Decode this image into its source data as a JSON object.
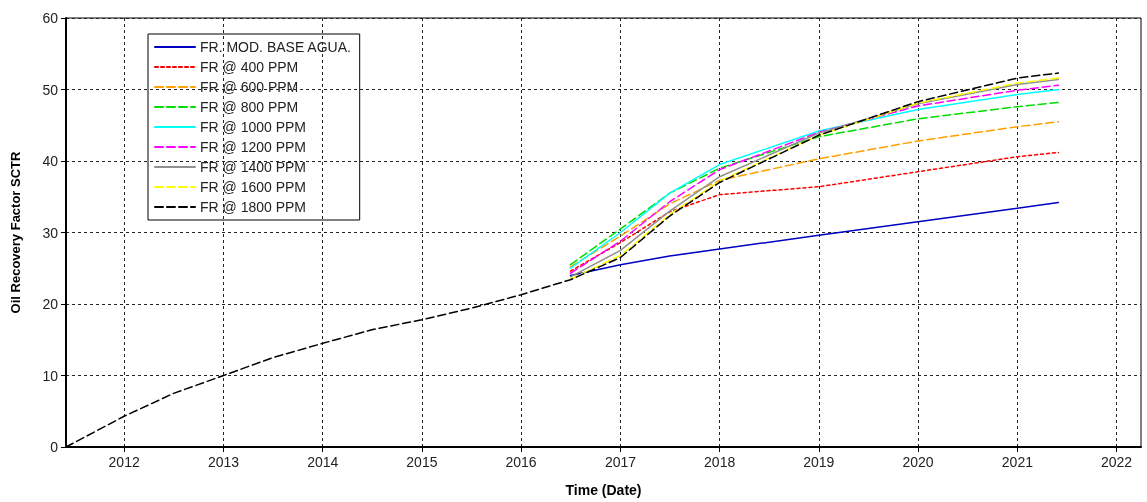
{
  "chart_data": {
    "type": "line",
    "xlabel": "Time (Date)",
    "ylabel": "Oil Recovery Factor SCTR",
    "x": [
      "2011-06",
      "2012-01",
      "2012-07",
      "2013-01",
      "2013-07",
      "2014-01",
      "2014-07",
      "2015-01",
      "2015-07",
      "2016-01",
      "2016-07",
      "2017-01",
      "2017-07",
      "2018-01",
      "2019-01",
      "2020-01",
      "2021-01",
      "2021-06"
    ],
    "series": [
      {
        "name": "FR. MOD. BASE AGUA.",
        "color": "#0000c0",
        "line_style": "solid",
        "values": [
          null,
          null,
          null,
          null,
          null,
          null,
          null,
          null,
          null,
          null,
          24,
          25.5,
          26.7,
          27.7,
          29.6,
          31.5,
          33.4,
          34.2
        ]
      },
      {
        "name": "FR @ 400 PPM",
        "color": "#ff0000",
        "line_style": "dotted",
        "values": [
          null,
          null,
          null,
          null,
          null,
          null,
          null,
          null,
          null,
          null,
          24.6,
          28.6,
          32.9,
          35.3,
          36.4,
          38.5,
          40.6,
          41.2
        ]
      },
      {
        "name": "FR @ 600 PPM",
        "color": "#ffa000",
        "line_style": "dashed",
        "values": [
          null,
          null,
          null,
          null,
          null,
          null,
          null,
          null,
          null,
          null,
          25.2,
          29.5,
          34,
          37.3,
          40.3,
          42.8,
          44.8,
          45.5
        ]
      },
      {
        "name": "FR @ 800 PPM",
        "color": "#00dd00",
        "line_style": "dashed",
        "values": [
          null,
          null,
          null,
          null,
          null,
          null,
          null,
          null,
          null,
          null,
          25.5,
          30.5,
          35.5,
          39,
          43.4,
          45.9,
          47.6,
          48.2
        ]
      },
      {
        "name": "FR @ 1000 PPM",
        "color": "#00ffff",
        "line_style": "solid",
        "values": [
          null,
          null,
          null,
          null,
          null,
          null,
          null,
          null,
          null,
          null,
          25,
          30,
          35.5,
          39.5,
          44.2,
          47.2,
          49.3,
          50
        ]
      },
      {
        "name": "FR @ 1200 PPM",
        "color": "#ff00ff",
        "line_style": "dashed",
        "values": [
          null,
          null,
          null,
          null,
          null,
          null,
          null,
          null,
          null,
          null,
          24.3,
          28.8,
          34.3,
          38.8,
          44,
          47.7,
          49.9,
          50.6
        ]
      },
      {
        "name": "FR @ 1400 PPM",
        "color": "#909090",
        "line_style": "solid",
        "values": [
          null,
          null,
          null,
          null,
          null,
          null,
          null,
          null,
          null,
          null,
          23.8,
          27.5,
          33,
          37.8,
          43.9,
          48,
          50.7,
          51.4
        ]
      },
      {
        "name": "FR @ 1600 PPM",
        "color": "#ffff00",
        "line_style": "dashed",
        "values": [
          null,
          null,
          null,
          null,
          null,
          null,
          null,
          null,
          null,
          null,
          23.5,
          26.8,
          32.5,
          37.2,
          43.6,
          48.1,
          50.9,
          51.6
        ]
      },
      {
        "name": "FR @ 1800 PPM",
        "color": "#000000",
        "line_style": "dashed",
        "values": [
          0,
          4.3,
          7.5,
          10,
          12.5,
          14.5,
          16.4,
          17.8,
          19.4,
          21.3,
          23.4,
          26.5,
          32.3,
          37,
          43.6,
          48.3,
          51.6,
          52.3
        ]
      }
    ],
    "xlim": [
      "2011-06",
      "2022-04"
    ],
    "xticks": [
      "2012",
      "2013",
      "2014",
      "2015",
      "2016",
      "2017",
      "2018",
      "2019",
      "2020",
      "2021",
      "2022"
    ],
    "ylim": [
      0,
      60
    ],
    "yticks": [
      0,
      10,
      20,
      30,
      40,
      50,
      60
    ],
    "grid": true,
    "legend": "top left",
    "marker": "none"
  }
}
